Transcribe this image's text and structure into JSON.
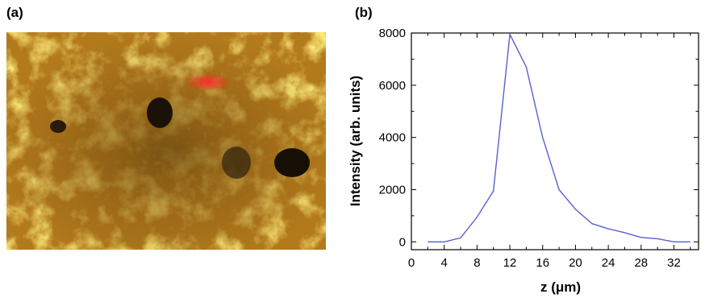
{
  "panels": {
    "a_label": "(a)",
    "b_label": "(b)"
  },
  "chart_data": {
    "type": "line",
    "title": "",
    "xlabel": "z (μm)",
    "ylabel": "Intensity (arb. units)",
    "xlim": [
      0,
      35
    ],
    "ylim": [
      -300,
      8000
    ],
    "xticks": [
      0,
      4,
      8,
      12,
      16,
      20,
      24,
      28,
      32
    ],
    "yticks": [
      0,
      2000,
      4000,
      6000,
      8000
    ],
    "grid": false,
    "line_color": "#5a5fd0",
    "series": [
      {
        "x": [
          2,
          4,
          6,
          8,
          10,
          12,
          14,
          16,
          18,
          20,
          22,
          24,
          26,
          28,
          30,
          32,
          34
        ],
        "y": [
          0,
          0,
          150,
          950,
          1950,
          7950,
          6700,
          4000,
          2000,
          1250,
          700,
          500,
          350,
          170,
          120,
          0,
          0
        ]
      }
    ]
  }
}
